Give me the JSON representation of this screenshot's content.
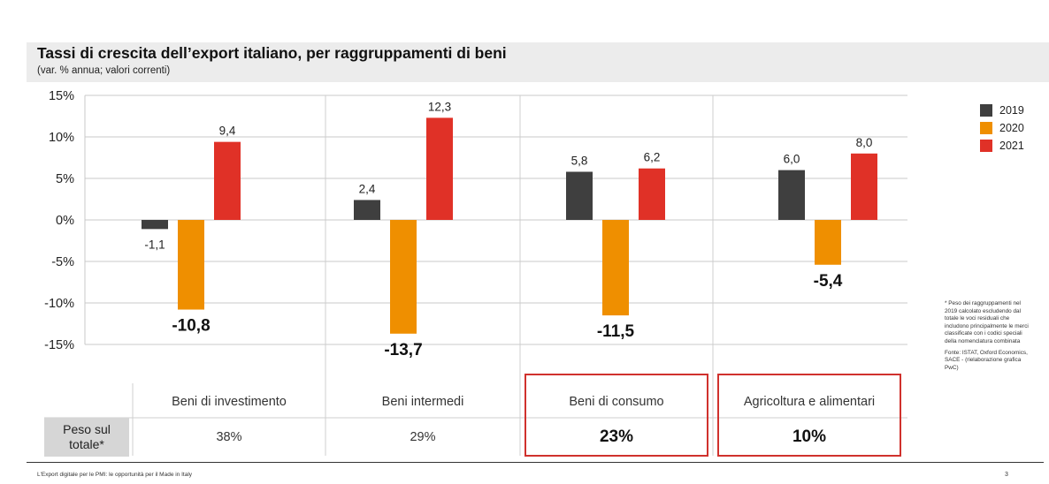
{
  "chart_data": {
    "type": "bar",
    "title": "Tassi di crescita dell’export italiano, per raggruppamenti di beni",
    "subtitle": "(var. % annua; valori correnti)",
    "categories": [
      "Beni di investimento",
      "Beni intermedi",
      "Beni di consumo",
      "Agricoltura e alimentari"
    ],
    "series": [
      {
        "name": "2019",
        "color": "#3f3f3f",
        "values": [
          -1.1,
          2.4,
          5.8,
          6.0
        ],
        "labels": [
          "-1,1",
          "2,4",
          "5,8",
          "6,0"
        ]
      },
      {
        "name": "2020",
        "color": "#ef8f00",
        "values": [
          -10.8,
          -13.7,
          -11.5,
          -5.4
        ],
        "labels": [
          "-10,8",
          "-13,7",
          "-11,5",
          "-5,4"
        ]
      },
      {
        "name": "2021",
        "color": "#e03127",
        "values": [
          9.4,
          12.3,
          6.2,
          8.0
        ],
        "labels": [
          "9,4",
          "12,3",
          "6,2",
          "8,0"
        ]
      }
    ],
    "yticks": [
      15,
      10,
      5,
      0,
      -5,
      -10,
      -15
    ],
    "ytick_labels": [
      "15%",
      "10%",
      "5%",
      "0%",
      "-5%",
      "-10%",
      "-15%"
    ],
    "ylim": [
      -15,
      15
    ],
    "grid": true,
    "legend_position": "right"
  },
  "weights": {
    "row_label": "Peso sul totale*",
    "values": [
      "38%",
      "29%",
      "23%",
      "10%"
    ],
    "highlighted": [
      false,
      false,
      true,
      true
    ],
    "highlight_color": "#d0312d"
  },
  "side_note": {
    "asterisk": "* Peso dei raggruppamenti nel 2019 calcolato escludendo dal totale le voci residuali che includono principalmente le merci classificate con i codici speciali della nomenclatura combinata",
    "source": "Fonte: ISTAT, Oxford Economics, SACE - (rielaborazione grafica PwC)"
  },
  "footer": {
    "text": "L'Export digitale per le PMI: le opportunità per il Made in Italy",
    "page": "3"
  }
}
